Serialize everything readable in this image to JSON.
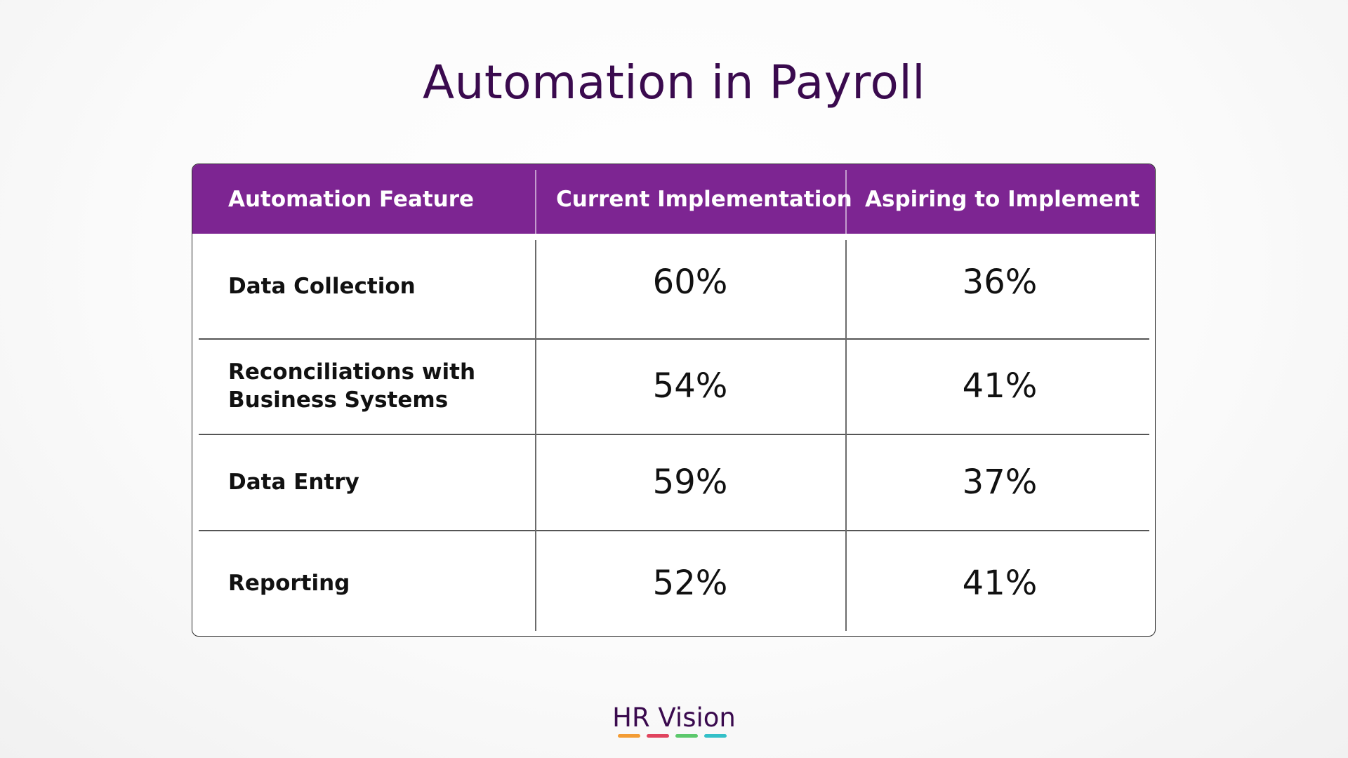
{
  "title": "Automation in Payroll",
  "chart_data": {
    "type": "table",
    "columns": [
      "Automation Feature",
      "Current Implementation",
      "Aspiring to Implement"
    ],
    "rows": [
      {
        "feature_lines": [
          "Data Collection"
        ],
        "current": "60%",
        "aspiring": "36%"
      },
      {
        "feature_lines": [
          "Reconciliations with",
          "Business Systems"
        ],
        "current": "54%",
        "aspiring": "41%"
      },
      {
        "feature_lines": [
          "Data Entry"
        ],
        "current": "59%",
        "aspiring": "37%"
      },
      {
        "feature_lines": [
          "Reporting"
        ],
        "current": "52%",
        "aspiring": "41%"
      }
    ],
    "values": {
      "current": [
        60,
        54,
        59,
        52
      ],
      "aspiring": [
        36,
        41,
        37,
        41
      ]
    }
  },
  "colors": {
    "title": "#3a0a4e",
    "header_bg": "#7d2592",
    "header_text": "#ffffff",
    "logo_bars": [
      "#f39c34",
      "#e0445e",
      "#5cc86c",
      "#34c0c8"
    ]
  },
  "logo": {
    "text": "HR Vision"
  }
}
